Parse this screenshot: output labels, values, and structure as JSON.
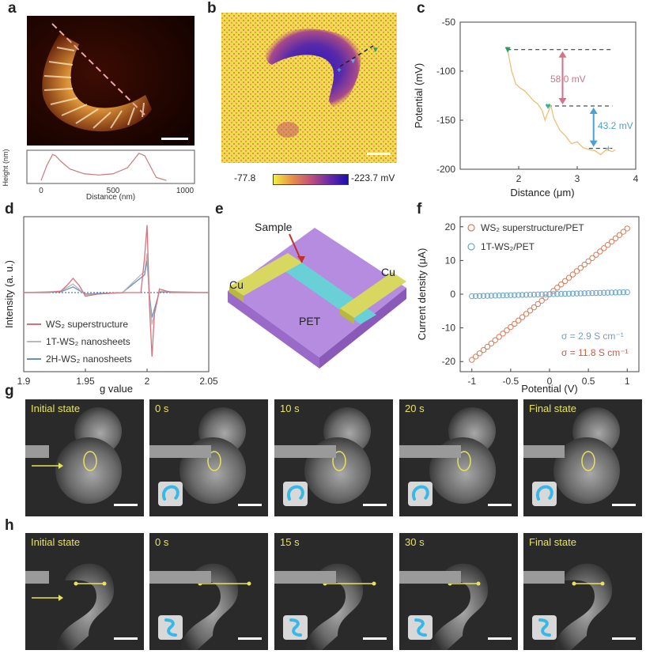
{
  "panels": {
    "a": "a",
    "b": "b",
    "c": "c",
    "d": "d",
    "e": "e",
    "f": "f",
    "g": "g",
    "h": "h"
  },
  "panel_a": {
    "profile_xlabel": "Distance (nm)",
    "profile_ylabel": "Height (nm)",
    "xticks": [
      "0",
      "500",
      "1000"
    ],
    "profile_x": [
      0,
      40,
      80,
      100,
      140,
      200,
      300,
      400,
      500,
      600,
      640,
      680,
      720,
      760,
      800,
      870
    ],
    "profile_y": [
      5,
      30,
      48,
      46,
      36,
      24,
      16,
      14,
      16,
      26,
      38,
      50,
      46,
      28,
      10,
      5
    ]
  },
  "panel_b": {
    "colorbar_min": "-77.8",
    "colorbar_max": "-223.7 mV",
    "colors": [
      "#f2ee3f",
      "#e7904a",
      "#c0507a",
      "#6a2aa8",
      "#1a0fb0"
    ]
  },
  "panel_e": {
    "sample_label": "Sample",
    "cu_left": "Cu",
    "cu_right": "Cu",
    "pet_label": "PET"
  },
  "panel_g": {
    "frames": [
      {
        "label": "Initial state",
        "has_inset": false
      },
      {
        "label": "0 s",
        "has_inset": true
      },
      {
        "label": "10 s",
        "has_inset": true
      },
      {
        "label": "20 s",
        "has_inset": true
      },
      {
        "label": "Final state",
        "has_inset": true
      }
    ]
  },
  "panel_h": {
    "frames": [
      {
        "label": "Initial state",
        "has_inset": false
      },
      {
        "label": "0 s",
        "has_inset": true
      },
      {
        "label": "15 s",
        "has_inset": true
      },
      {
        "label": "30 s",
        "has_inset": true
      },
      {
        "label": "Final state",
        "has_inset": true
      }
    ]
  },
  "chart_data": [
    {
      "id": "c",
      "type": "line",
      "xlabel": "Distance (μm)",
      "ylabel": "Potential (mV)",
      "xlim": [
        1,
        4
      ],
      "ylim": [
        -200,
        -50
      ],
      "xticks": [
        "2",
        "3",
        "4"
      ],
      "yticks": [
        "-50",
        "-100",
        "-150",
        "-200"
      ],
      "x": [
        1.8,
        1.88,
        1.95,
        2.02,
        2.1,
        2.18,
        2.25,
        2.32,
        2.4,
        2.45,
        2.5,
        2.55,
        2.6,
        2.7,
        2.8,
        2.9,
        3.0,
        3.1,
        3.2,
        3.3,
        3.4,
        3.5,
        3.6,
        3.65
      ],
      "y": [
        -75,
        -100,
        -113,
        -117,
        -120,
        -125,
        -130,
        -133,
        -140,
        -150,
        -142,
        -135,
        -148,
        -160,
        -166,
        -174,
        -172,
        -178,
        -180,
        -181,
        -185,
        -180,
        -182,
        -180
      ],
      "annotations": [
        {
          "text": "58.0 mV",
          "color": "#d1738a"
        },
        {
          "text": "43.2 mV",
          "color": "#4aa3cf"
        }
      ],
      "levels": [
        -78,
        -135.5,
        -178.7
      ],
      "line_color": "#e8c07a"
    },
    {
      "id": "d",
      "type": "line",
      "xlabel": "g value",
      "ylabel": "Intensity (a. u.)",
      "xlim": [
        1.9,
        2.05
      ],
      "xticks": [
        "1.9",
        "1.95",
        "2",
        "2.05"
      ],
      "series": [
        {
          "name": "WS₂ superstructure",
          "color": "#d9707a",
          "x": [
            1.9,
            1.92,
            1.93,
            1.935,
            1.94,
            1.945,
            1.95,
            1.96,
            1.98,
            1.995,
            1.998,
            2.0,
            2.002,
            2.004,
            2.006,
            2.01,
            2.02,
            2.05
          ],
          "y": [
            0,
            0,
            0.02,
            0.1,
            0.2,
            0.1,
            -0.05,
            -0.02,
            0,
            0,
            0.5,
            0.95,
            -0.2,
            -0.9,
            -0.3,
            0.05,
            0,
            0
          ]
        },
        {
          "name": "1T-WS₂ nanosheets",
          "color": "#b9b9b9",
          "x": [
            1.9,
            1.93,
            1.94,
            1.95,
            1.98,
            1.998,
            2.0,
            2.002,
            2.004,
            2.01,
            2.05
          ],
          "y": [
            0,
            0.02,
            0.12,
            -0.03,
            0,
            0.3,
            0.55,
            -0.1,
            -0.45,
            0.02,
            0
          ]
        },
        {
          "name": "2H-WS₂ nanosheets",
          "color": "#6a8fbf",
          "x": [
            1.9,
            1.93,
            1.94,
            1.95,
            1.98,
            1.998,
            2.0,
            2.002,
            2.004,
            2.01,
            2.05
          ],
          "y": [
            0,
            0.01,
            0.08,
            -0.02,
            0,
            0.25,
            0.45,
            -0.05,
            -0.35,
            0.01,
            0
          ]
        }
      ]
    },
    {
      "id": "f",
      "type": "scatter",
      "xlabel": "Potential (V)",
      "ylabel": "Current density (μA)",
      "xlim": [
        -1.15,
        1.15
      ],
      "ylim": [
        -23,
        23
      ],
      "xticks": [
        "-1",
        "-0.5",
        "0",
        "0.5",
        "1"
      ],
      "yticks": [
        "20",
        "10",
        "0",
        "-10",
        "-20"
      ],
      "series": [
        {
          "name": "WS₂ superstructure/PET",
          "color": "#d77a58",
          "slope": 19.5
        },
        {
          "name": "1T-WS₂/PET",
          "color": "#6aa6c9",
          "slope": 0.6
        }
      ],
      "sigma_labels": [
        {
          "text": "σ = 2.9 S cm⁻¹",
          "color": "#7a9ac2"
        },
        {
          "text": "σ = 11.8 S cm⁻¹",
          "color": "#c85c4a"
        }
      ]
    }
  ]
}
